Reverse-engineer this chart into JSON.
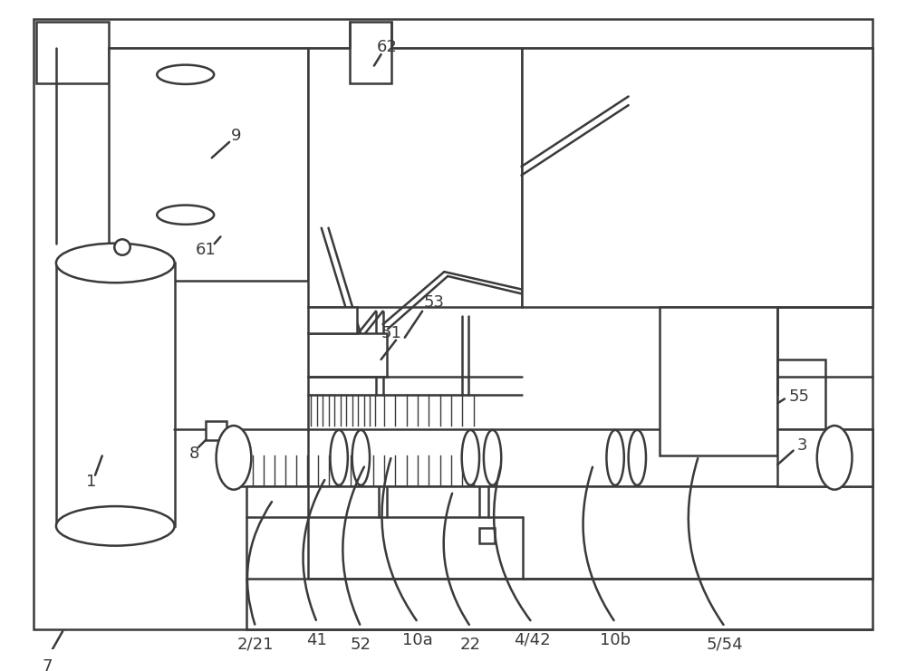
{
  "bg_color": "#ffffff",
  "line_color": "#3a3a3a",
  "line_width": 1.8,
  "thin_line": 1.0,
  "font_size": 13
}
